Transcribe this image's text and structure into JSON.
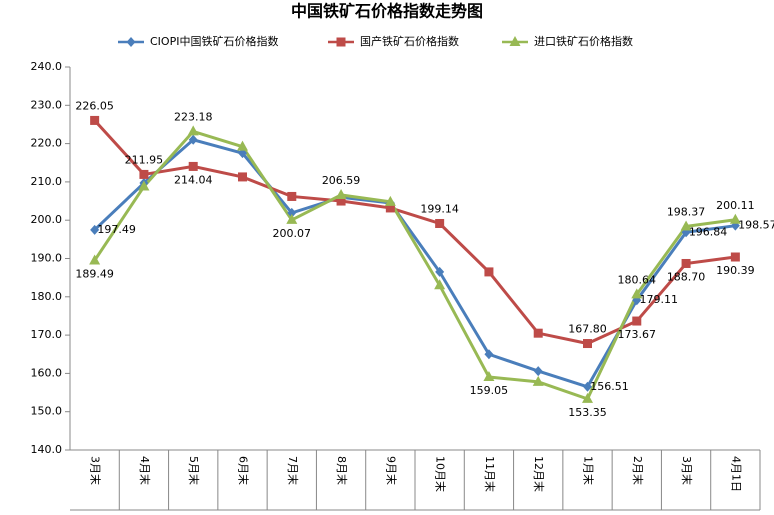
{
  "chart_data": {
    "type": "line",
    "title": "中国铁矿石价格指数走势图",
    "categories": [
      "3月末",
      "4月末",
      "5月末",
      "6月末",
      "7月末",
      "8月末",
      "9月末",
      "10月末",
      "11月末",
      "12月末",
      "1月末",
      "2月末",
      "3月末",
      "4月1日"
    ],
    "series": [
      {
        "name": "CIOPI中国铁矿石价格指数",
        "color": "#4a7ebb",
        "marker": "diamond",
        "values": [
          197.49,
          209.7,
          221.0,
          217.5,
          201.9,
          206.0,
          204.5,
          186.5,
          165.0,
          160.6,
          156.51,
          179.11,
          196.84,
          198.57
        ],
        "value_labels": [
          "197.49",
          null,
          null,
          null,
          null,
          null,
          null,
          null,
          null,
          null,
          "156.51",
          "179.11",
          "196.84",
          "198.57"
        ]
      },
      {
        "name": "国产铁矿石价格指数",
        "color": "#be4b48",
        "marker": "square",
        "values": [
          226.05,
          211.95,
          214.04,
          211.3,
          206.2,
          205.0,
          203.2,
          199.14,
          186.5,
          170.5,
          167.8,
          173.67,
          188.7,
          190.39
        ],
        "value_labels": [
          "226.05",
          "211.95",
          "214.04",
          null,
          null,
          null,
          null,
          "199.14",
          null,
          null,
          "167.80",
          "173.67",
          "188.70",
          "190.39"
        ]
      },
      {
        "name": "进口铁矿石价格指数",
        "color": "#98b954",
        "marker": "triangle",
        "values": [
          189.49,
          208.8,
          223.18,
          219.2,
          200.07,
          206.59,
          204.8,
          183.0,
          159.05,
          157.8,
          153.35,
          180.64,
          198.37,
          200.11
        ],
        "value_labels": [
          "189.49",
          null,
          "223.18",
          null,
          "200.07",
          "206.59",
          null,
          null,
          "159.05",
          null,
          "153.35",
          "180.64",
          "198.37",
          "200.11"
        ]
      }
    ],
    "ylim": [
      140,
      240
    ],
    "yticks": [
      {
        "value": 140,
        "label": "140.0"
      },
      {
        "value": 150,
        "label": "150.0"
      },
      {
        "value": 160,
        "label": "160.0"
      },
      {
        "value": 170,
        "label": "170.0"
      },
      {
        "value": 180,
        "label": "180.0"
      },
      {
        "value": 190,
        "label": "190.0"
      },
      {
        "value": 200,
        "label": "200.0"
      },
      {
        "value": 210,
        "label": "210.0"
      },
      {
        "value": 220,
        "label": "220.0"
      },
      {
        "value": 230,
        "label": "230.0"
      },
      {
        "value": 240,
        "label": "240.0"
      }
    ],
    "legend": "top"
  }
}
